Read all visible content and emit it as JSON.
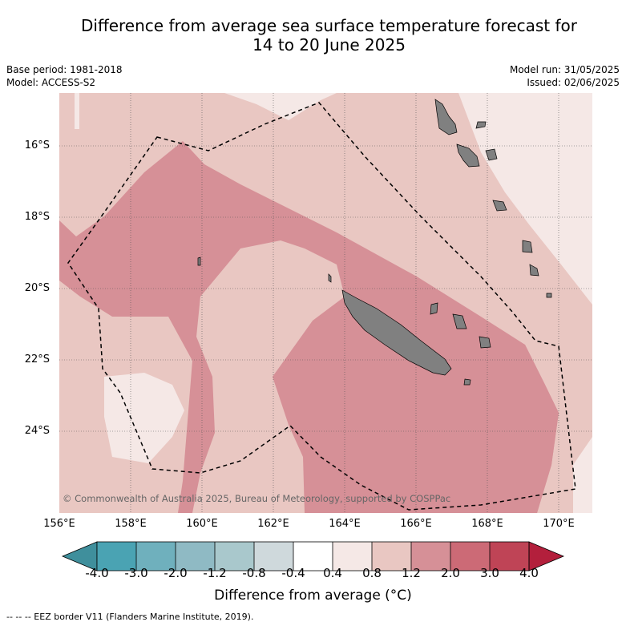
{
  "title_line1": "Difference from average sea surface temperature forecast for",
  "title_line2": "14 to 20 June 2025",
  "base_period": "Base period: 1981-2018",
  "model": "Model: ACCESS-S2",
  "model_run": "Model run: 31/05/2025",
  "issued": "Issued: 02/06/2025",
  "copyright": "© Commonwealth of Australia 2025, Bureau of Meteorology, supported by COSPPac",
  "lat_ticks": [
    "16°S",
    "18°S",
    "20°S",
    "22°S",
    "24°S"
  ],
  "lon_ticks": [
    "156°E",
    "158°E",
    "160°E",
    "162°E",
    "164°E",
    "166°E",
    "168°E",
    "170°E"
  ],
  "colorbar": {
    "title": "Difference from average (°C)",
    "labels": [
      "-4.0",
      "-3.0",
      "-2.0",
      "-1.2",
      "-0.8",
      "-0.4",
      "0.4",
      "0.8",
      "1.2",
      "2.0",
      "3.0",
      "4.0"
    ],
    "colors": [
      "#3f8f9c",
      "#4aa3b3",
      "#6fb0bd",
      "#8fbac4",
      "#a9c8cc",
      "#cfd9dc",
      "#ffffff",
      "#f5e8e6",
      "#e9c7c2",
      "#d69097",
      "#cc6a76",
      "#bf4456",
      "#b31f3c"
    ]
  },
  "footer": "--  --  -- EEZ border V11 (Flanders Marine Institute, 2019)."
}
